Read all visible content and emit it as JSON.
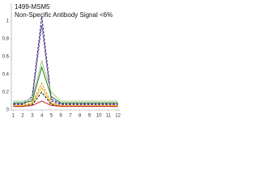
{
  "chart_data": {
    "type": "line",
    "title": "1499-MSM5",
    "subtitle": "Non-Specific Antibody Signal <6%",
    "x": [
      1,
      2,
      3,
      4,
      5,
      6,
      7,
      8,
      9,
      10,
      11,
      12
    ],
    "xlim": [
      0.8,
      12.2
    ],
    "xticks": [
      1,
      2,
      3,
      4,
      5,
      6,
      7,
      8,
      9,
      10,
      11,
      12
    ],
    "ylim": [
      0,
      1.2
    ],
    "yticks": [
      0,
      0.2,
      0.4,
      0.6,
      0.8,
      1
    ],
    "series": [
      {
        "color": "#1f2a6b",
        "dash": true,
        "values": [
          0.07,
          0.07,
          0.15,
          1.05,
          0.12,
          0.07,
          0.07,
          0.07,
          0.07,
          0.07,
          0.07,
          0.07
        ]
      },
      {
        "color": "#7b3fa0",
        "dash": true,
        "values": [
          0.06,
          0.06,
          0.12,
          0.95,
          0.1,
          0.06,
          0.06,
          0.06,
          0.06,
          0.06,
          0.06,
          0.06
        ]
      },
      {
        "color": "#a8d08d",
        "dash": false,
        "values": [
          0.1,
          0.1,
          0.12,
          0.55,
          0.2,
          0.1,
          0.1,
          0.1,
          0.1,
          0.1,
          0.1,
          0.1
        ]
      },
      {
        "color": "#3a8a3a",
        "dash": false,
        "values": [
          0.08,
          0.08,
          0.1,
          0.48,
          0.15,
          0.08,
          0.08,
          0.08,
          0.08,
          0.08,
          0.08,
          0.08
        ]
      },
      {
        "color": "#e08a1e",
        "dash": true,
        "values": [
          0.05,
          0.05,
          0.08,
          0.3,
          0.08,
          0.05,
          0.05,
          0.05,
          0.05,
          0.05,
          0.05,
          0.05
        ]
      },
      {
        "color": "#e8c830",
        "dash": false,
        "values": [
          0.05,
          0.05,
          0.07,
          0.25,
          0.07,
          0.05,
          0.05,
          0.05,
          0.05,
          0.05,
          0.05,
          0.05
        ]
      },
      {
        "color": "#222222",
        "dash": true,
        "values": [
          0.04,
          0.04,
          0.06,
          0.2,
          0.06,
          0.04,
          0.04,
          0.04,
          0.04,
          0.04,
          0.04,
          0.04
        ]
      },
      {
        "color": "#d03030",
        "dash": false,
        "values": [
          0.04,
          0.04,
          0.05,
          0.1,
          0.05,
          0.04,
          0.04,
          0.04,
          0.04,
          0.04,
          0.04,
          0.04
        ]
      }
    ]
  }
}
